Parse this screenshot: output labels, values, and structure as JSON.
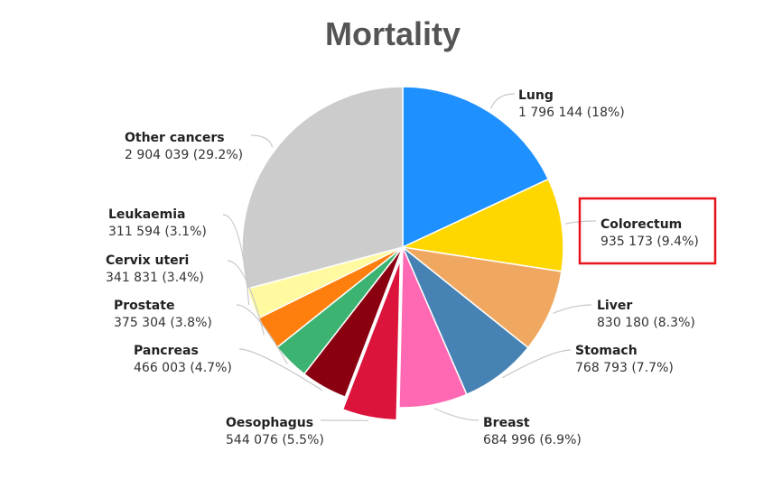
{
  "chart_data": {
    "type": "pie",
    "title": "Mortality",
    "slices": [
      {
        "name": "Lung",
        "value": 1796144,
        "value_label": "1 796 144",
        "percent_label": "(18%)",
        "color": "#1e90ff"
      },
      {
        "name": "Colorectum",
        "value": 935173,
        "value_label": "935 173",
        "percent_label": "(9.4%)",
        "color": "#ffd700",
        "highlighted": true
      },
      {
        "name": "Liver",
        "value": 830180,
        "value_label": "830 180",
        "percent_label": "(8.3%)",
        "color": "#f0a860"
      },
      {
        "name": "Stomach",
        "value": 768793,
        "value_label": "768 793",
        "percent_label": "(7.7%)",
        "color": "#4682b4"
      },
      {
        "name": "Breast",
        "value": 684996,
        "value_label": "684 996",
        "percent_label": "(6.9%)",
        "color": "#ff69b4"
      },
      {
        "name": "Oesophagus",
        "value": 544076,
        "value_label": "544 076",
        "percent_label": "(5.5%)",
        "color": "#dc143c",
        "exploded": true
      },
      {
        "name": "Pancreas",
        "value": 466003,
        "value_label": "466 003",
        "percent_label": "(4.7%)",
        "color": "#8b0010"
      },
      {
        "name": "Prostate",
        "value": 375304,
        "value_label": "375 304",
        "percent_label": "(3.8%)",
        "color": "#3cb371"
      },
      {
        "name": "Cervix uteri",
        "value": 341831,
        "value_label": "341 831",
        "percent_label": "(3.4%)",
        "color": "#ff7f0e"
      },
      {
        "name": "Leukaemia",
        "value": 311594,
        "value_label": "311 594",
        "percent_label": "(3.1%)",
        "color": "#fffaa0"
      },
      {
        "name": "Other cancers",
        "value": 2904039,
        "value_label": "2 904 039",
        "percent_label": "(29.2%)",
        "color": "#cccccc"
      }
    ],
    "highlight_color": "#e8141c",
    "legend": "none"
  }
}
